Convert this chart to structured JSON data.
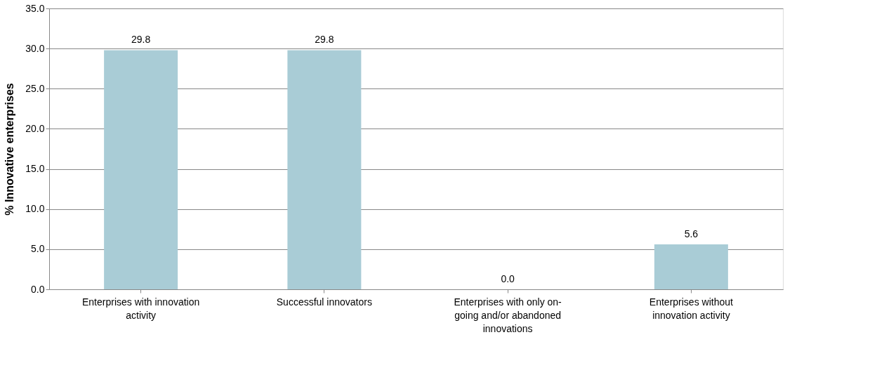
{
  "chart_data": {
    "type": "bar",
    "ylabel": "% Innovative enterprises",
    "categories": [
      "Enterprises with innovation activity",
      "Successful innovators",
      "Enterprises with only on-going and/or abandoned innovations",
      "Enterprises without innovation activity"
    ],
    "values": [
      29.8,
      29.8,
      0.0,
      5.6
    ],
    "color": "#a9ccd6",
    "ylim": [
      0,
      35
    ],
    "yticks": [
      {
        "value": 0,
        "label": "0.0"
      },
      {
        "value": 5,
        "label": "5.0"
      },
      {
        "value": 10,
        "label": "10.0"
      },
      {
        "value": 15,
        "label": "15.0"
      },
      {
        "value": 20,
        "label": "20.0"
      },
      {
        "value": 25,
        "label": "25.0"
      },
      {
        "value": 30,
        "label": "30.0"
      },
      {
        "value": 35,
        "label": "35.0"
      }
    ],
    "grid": "y",
    "value_labels": [
      "29.8",
      "29.8",
      "0.0",
      "5.6"
    ]
  }
}
